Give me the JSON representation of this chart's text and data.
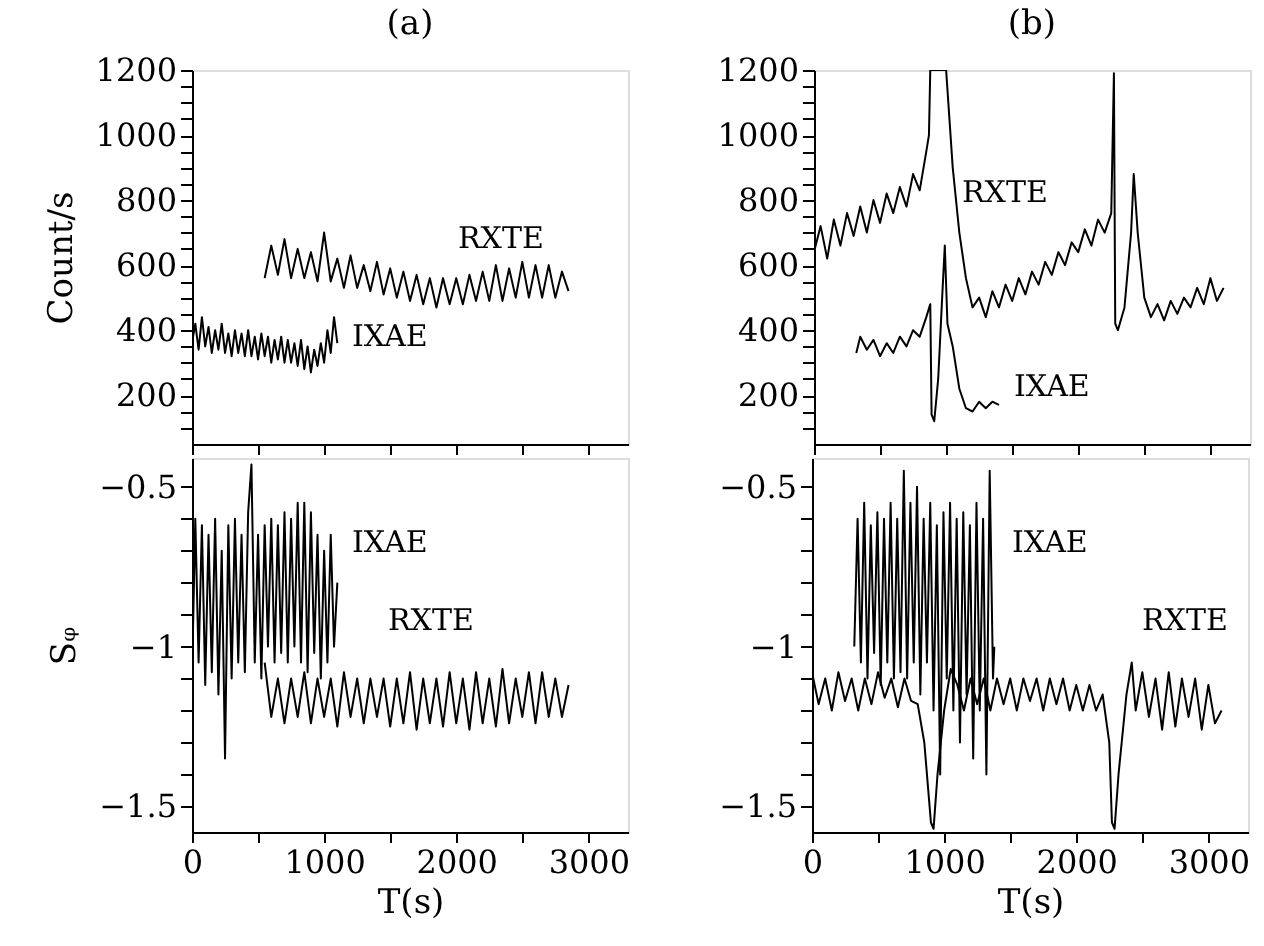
{
  "chart_data": [
    {
      "type": "line",
      "title": "(a)",
      "ylabel": "Count/s",
      "xlim": [
        0,
        3300
      ],
      "ylim": [
        50,
        1200
      ],
      "tick_labels": "y",
      "legend": false,
      "grid": false,
      "xticks": [
        {
          "value": 0,
          "label": null
        },
        {
          "value": 500,
          "label": null
        },
        {
          "value": 1000,
          "label": null
        },
        {
          "value": 1500,
          "label": null
        },
        {
          "value": 2000,
          "label": null
        },
        {
          "value": 2500,
          "label": null
        },
        {
          "value": 3000,
          "label": null
        }
      ],
      "yticks": [
        {
          "value": 100,
          "label": null
        },
        {
          "value": 150,
          "label": null
        },
        200,
        {
          "value": 250,
          "label": null
        },
        {
          "value": 300,
          "label": null
        },
        {
          "value": 350,
          "label": null
        },
        400,
        {
          "value": 450,
          "label": null
        },
        {
          "value": 500,
          "label": null
        },
        {
          "value": 550,
          "label": null
        },
        600,
        {
          "value": 650,
          "label": null
        },
        {
          "value": 700,
          "label": null
        },
        {
          "value": 750,
          "label": null
        },
        800,
        {
          "value": 850,
          "label": null
        },
        {
          "value": 900,
          "label": null
        },
        {
          "value": 950,
          "label": null
        },
        1000,
        {
          "value": 1050,
          "label": null
        },
        {
          "value": 1100,
          "label": null
        },
        {
          "value": 1150,
          "label": null
        },
        1200
      ],
      "series": [
        {
          "name": "IXAE",
          "color": "#000000",
          "x": [
            0,
            25,
            50,
            75,
            100,
            125,
            150,
            175,
            200,
            225,
            250,
            275,
            300,
            325,
            350,
            375,
            400,
            425,
            450,
            475,
            500,
            525,
            550,
            575,
            600,
            625,
            650,
            675,
            700,
            725,
            750,
            775,
            800,
            825,
            850,
            875,
            900,
            925,
            950,
            975,
            1000,
            1025,
            1050,
            1075,
            1100
          ],
          "values": [
            360,
            420,
            340,
            440,
            350,
            410,
            330,
            400,
            340,
            420,
            330,
            390,
            320,
            400,
            330,
            390,
            320,
            400,
            320,
            380,
            310,
            390,
            320,
            380,
            300,
            370,
            310,
            380,
            300,
            370,
            300,
            360,
            290,
            370,
            280,
            350,
            270,
            340,
            290,
            360,
            300,
            400,
            330,
            440,
            360
          ]
        },
        {
          "name": "RXTE",
          "color": "#000000",
          "x": [
            550,
            600,
            650,
            700,
            750,
            800,
            850,
            900,
            950,
            1000,
            1050,
            1100,
            1150,
            1200,
            1250,
            1300,
            1350,
            1400,
            1450,
            1500,
            1550,
            1600,
            1650,
            1700,
            1750,
            1800,
            1850,
            1900,
            1950,
            2000,
            2050,
            2100,
            2150,
            2200,
            2250,
            2300,
            2350,
            2400,
            2450,
            2500,
            2550,
            2600,
            2650,
            2700,
            2750,
            2800,
            2850
          ],
          "values": [
            560,
            660,
            570,
            680,
            560,
            650,
            560,
            640,
            550,
            700,
            550,
            620,
            530,
            630,
            530,
            600,
            520,
            610,
            510,
            590,
            500,
            580,
            490,
            570,
            480,
            560,
            470,
            560,
            480,
            560,
            480,
            570,
            490,
            580,
            490,
            600,
            490,
            590,
            500,
            610,
            500,
            600,
            500,
            600,
            500,
            580,
            520
          ]
        }
      ]
    },
    {
      "type": "line",
      "title": "(b)",
      "xlim": [
        0,
        3300
      ],
      "ylim": [
        50,
        1200
      ],
      "tick_labels": "y",
      "legend": false,
      "grid": false,
      "xticks": [
        {
          "value": 0,
          "label": null
        },
        {
          "value": 500,
          "label": null
        },
        {
          "value": 1000,
          "label": null
        },
        {
          "value": 1500,
          "label": null
        },
        {
          "value": 2000,
          "label": null
        },
        {
          "value": 2500,
          "label": null
        },
        {
          "value": 3000,
          "label": null
        }
      ],
      "yticks": [
        {
          "value": 100,
          "label": null
        },
        {
          "value": 150,
          "label": null
        },
        200,
        {
          "value": 250,
          "label": null
        },
        {
          "value": 300,
          "label": null
        },
        {
          "value": 350,
          "label": null
        },
        400,
        {
          "value": 450,
          "label": null
        },
        {
          "value": 500,
          "label": null
        },
        {
          "value": 550,
          "label": null
        },
        600,
        {
          "value": 650,
          "label": null
        },
        {
          "value": 700,
          "label": null
        },
        {
          "value": 750,
          "label": null
        },
        800,
        {
          "value": 850,
          "label": null
        },
        {
          "value": 900,
          "label": null
        },
        {
          "value": 950,
          "label": null
        },
        1000,
        {
          "value": 1050,
          "label": null
        },
        {
          "value": 1100,
          "label": null
        },
        {
          "value": 1150,
          "label": null
        },
        1200
      ],
      "series": [
        {
          "name": "RXTE",
          "color": "#000000",
          "x": [
            0,
            50,
            100,
            150,
            200,
            250,
            300,
            350,
            400,
            450,
            500,
            550,
            600,
            650,
            700,
            750,
            800,
            850,
            870,
            880,
            940,
            1000,
            1050,
            1100,
            1150,
            1200,
            1250,
            1300,
            1350,
            1400,
            1450,
            1500,
            1550,
            1600,
            1650,
            1700,
            1750,
            1800,
            1850,
            1900,
            1950,
            2000,
            2050,
            2100,
            2150,
            2200,
            2250,
            2270,
            2280,
            2300,
            2350,
            2400,
            2420,
            2450,
            2500,
            2550,
            2600,
            2650,
            2700,
            2750,
            2800,
            2850,
            2900,
            2950,
            3000,
            3050,
            3100
          ],
          "values": [
            640,
            720,
            620,
            740,
            660,
            760,
            690,
            780,
            700,
            800,
            730,
            820,
            760,
            840,
            780,
            880,
            830,
            950,
            1000,
            1200,
            1200,
            1200,
            900,
            700,
            560,
            470,
            500,
            440,
            520,
            470,
            540,
            490,
            560,
            510,
            580,
            540,
            610,
            570,
            640,
            600,
            670,
            640,
            710,
            660,
            740,
            700,
            760,
            1190,
            420,
            400,
            470,
            700,
            880,
            700,
            500,
            440,
            480,
            430,
            490,
            450,
            500,
            470,
            530,
            480,
            560,
            490,
            530
          ]
        },
        {
          "name": "IXAE",
          "color": "#000000",
          "x": [
            320,
            350,
            400,
            450,
            500,
            550,
            600,
            650,
            700,
            750,
            800,
            850,
            880,
            890,
            910,
            940,
            970,
            990,
            1010,
            1050,
            1100,
            1150,
            1200,
            1250,
            1300,
            1350,
            1400
          ],
          "values": [
            330,
            380,
            340,
            370,
            320,
            360,
            330,
            380,
            350,
            400,
            380,
            440,
            480,
            140,
            120,
            250,
            500,
            660,
            420,
            350,
            220,
            160,
            150,
            180,
            160,
            180,
            170
          ]
        }
      ]
    },
    {
      "type": "line",
      "ylabel": "Sᵩ",
      "xlabel": "T(s)",
      "xlim": [
        0,
        3300
      ],
      "ylim": [
        -1.58,
        -0.41
      ],
      "legend": false,
      "grid": false,
      "xticks": [
        0,
        {
          "value": 500,
          "label": null
        },
        1000,
        {
          "value": 1500,
          "label": null
        },
        2000,
        {
          "value": 2500,
          "label": null
        },
        3000
      ],
      "yticks": [
        {
          "value": -1.5,
          "label": "−1.5"
        },
        {
          "value": -1.4,
          "label": null
        },
        {
          "value": -1.3,
          "label": null
        },
        {
          "value": -1.2,
          "label": null
        },
        {
          "value": -1.1,
          "label": null
        },
        {
          "value": -1,
          "label": "−1"
        },
        {
          "value": -0.9,
          "label": null
        },
        {
          "value": -0.8,
          "label": null
        },
        {
          "value": -0.7,
          "label": null
        },
        {
          "value": -0.6,
          "label": null
        },
        {
          "value": -0.5,
          "label": "−0.5"
        }
      ],
      "series": [
        {
          "name": "IXAE",
          "color": "#000000",
          "x": [
            0,
            25,
            50,
            75,
            100,
            125,
            150,
            175,
            200,
            225,
            250,
            275,
            300,
            325,
            350,
            375,
            400,
            425,
            450,
            475,
            500,
            525,
            550,
            575,
            600,
            625,
            650,
            675,
            700,
            725,
            750,
            775,
            800,
            825,
            850,
            875,
            900,
            925,
            950,
            975,
            1000,
            1025,
            1050,
            1075,
            1100
          ],
          "values": [
            -1.1,
            -0.6,
            -1.05,
            -0.62,
            -1.12,
            -0.65,
            -1.08,
            -0.6,
            -1.15,
            -0.7,
            -1.35,
            -0.62,
            -1.1,
            -0.6,
            -1.05,
            -0.65,
            -1.08,
            -0.58,
            -0.43,
            -1.05,
            -0.65,
            -1.1,
            -0.62,
            -1.0,
            -0.6,
            -1.05,
            -0.62,
            -1.02,
            -0.58,
            -1.05,
            -0.6,
            -1.0,
            -0.55,
            -1.05,
            -0.55,
            -1.08,
            -0.58,
            -1.02,
            -0.65,
            -1.1,
            -0.7,
            -1.05,
            -0.65,
            -1.0,
            -0.8
          ]
        },
        {
          "name": "RXTE",
          "color": "#000000",
          "x": [
            550,
            600,
            650,
            700,
            750,
            800,
            850,
            900,
            950,
            1000,
            1050,
            1100,
            1150,
            1200,
            1250,
            1300,
            1350,
            1400,
            1450,
            1500,
            1550,
            1600,
            1650,
            1700,
            1750,
            1800,
            1850,
            1900,
            1950,
            2000,
            2050,
            2100,
            2150,
            2200,
            2250,
            2300,
            2350,
            2400,
            2450,
            2500,
            2550,
            2600,
            2650,
            2700,
            2750,
            2800,
            2850
          ],
          "values": [
            -1.05,
            -1.22,
            -1.1,
            -1.24,
            -1.1,
            -1.22,
            -1.08,
            -1.24,
            -1.1,
            -1.22,
            -1.1,
            -1.25,
            -1.08,
            -1.22,
            -1.1,
            -1.24,
            -1.1,
            -1.22,
            -1.1,
            -1.25,
            -1.1,
            -1.24,
            -1.08,
            -1.26,
            -1.1,
            -1.24,
            -1.1,
            -1.25,
            -1.08,
            -1.24,
            -1.1,
            -1.26,
            -1.08,
            -1.24,
            -1.1,
            -1.25,
            -1.07,
            -1.24,
            -1.1,
            -1.22,
            -1.08,
            -1.24,
            -1.08,
            -1.22,
            -1.1,
            -1.22,
            -1.12
          ]
        }
      ]
    },
    {
      "type": "line",
      "xlabel": "T(s)",
      "xlim": [
        0,
        3300
      ],
      "ylim": [
        -1.58,
        -0.41
      ],
      "legend": false,
      "grid": false,
      "xticks": [
        0,
        {
          "value": 500,
          "label": null
        },
        1000,
        {
          "value": 1500,
          "label": null
        },
        2000,
        {
          "value": 2500,
          "label": null
        },
        3000
      ],
      "yticks": [
        {
          "value": -1.5,
          "label": "−1.5"
        },
        {
          "value": -1.4,
          "label": null
        },
        {
          "value": -1.3,
          "label": null
        },
        {
          "value": -1.2,
          "label": null
        },
        {
          "value": -1.1,
          "label": null
        },
        {
          "value": -1,
          "label": "−1"
        },
        {
          "value": -0.9,
          "label": null
        },
        {
          "value": -0.8,
          "label": null
        },
        {
          "value": -0.7,
          "label": null
        },
        {
          "value": -0.6,
          "label": null
        },
        {
          "value": -0.5,
          "label": "−0.5"
        }
      ],
      "series": [
        {
          "name": "RXTE",
          "color": "#000000",
          "x": [
            0,
            50,
            100,
            150,
            200,
            250,
            300,
            350,
            400,
            450,
            500,
            550,
            600,
            650,
            700,
            750,
            800,
            850,
            900,
            920,
            950,
            1000,
            1050,
            1100,
            1150,
            1200,
            1250,
            1300,
            1350,
            1400,
            1450,
            1500,
            1550,
            1600,
            1650,
            1700,
            1750,
            1800,
            1850,
            1900,
            1950,
            2000,
            2050,
            2100,
            2150,
            2200,
            2250,
            2270,
            2290,
            2320,
            2380,
            2420,
            2450,
            2500,
            2550,
            2600,
            2650,
            2700,
            2750,
            2800,
            2850,
            2900,
            2950,
            3000,
            3050,
            3100
          ],
          "values": [
            -1.08,
            -1.18,
            -1.1,
            -1.2,
            -1.08,
            -1.17,
            -1.1,
            -1.2,
            -1.1,
            -1.18,
            -1.08,
            -1.16,
            -1.1,
            -1.19,
            -1.1,
            -1.17,
            -1.18,
            -1.3,
            -1.55,
            -1.57,
            -1.4,
            -1.2,
            -1.07,
            -1.12,
            -1.2,
            -1.1,
            -1.18,
            -1.1,
            -1.2,
            -1.1,
            -1.18,
            -1.1,
            -1.2,
            -1.1,
            -1.17,
            -1.1,
            -1.2,
            -1.1,
            -1.18,
            -1.1,
            -1.2,
            -1.12,
            -1.2,
            -1.12,
            -1.2,
            -1.15,
            -1.3,
            -1.55,
            -1.57,
            -1.4,
            -1.15,
            -1.05,
            -1.2,
            -1.08,
            -1.22,
            -1.1,
            -1.26,
            -1.08,
            -1.25,
            -1.1,
            -1.22,
            -1.1,
            -1.26,
            -1.12,
            -1.24,
            -1.2
          ]
        },
        {
          "name": "IXAE",
          "color": "#000000",
          "x": [
            320,
            345,
            370,
            395,
            420,
            445,
            470,
            495,
            520,
            545,
            570,
            595,
            620,
            645,
            670,
            695,
            720,
            745,
            770,
            795,
            820,
            845,
            870,
            895,
            920,
            945,
            970,
            995,
            1020,
            1045,
            1070,
            1095,
            1120,
            1145,
            1170,
            1195,
            1220,
            1245,
            1270,
            1295,
            1320,
            1345,
            1370,
            1380
          ],
          "values": [
            -1.0,
            -0.6,
            -1.05,
            -0.55,
            -1.1,
            -0.62,
            -1.02,
            -0.58,
            -1.12,
            -0.6,
            -1.05,
            -0.55,
            -1.1,
            -0.6,
            -1.08,
            -0.45,
            -1.1,
            -0.55,
            -1.05,
            -0.5,
            -1.15,
            -0.6,
            -1.05,
            -0.55,
            -1.2,
            -0.62,
            -1.4,
            -0.58,
            -1.1,
            -0.55,
            -1.2,
            -0.6,
            -1.3,
            -0.58,
            -1.15,
            -0.62,
            -1.35,
            -0.55,
            -1.2,
            -0.6,
            -1.4,
            -0.45,
            -1.1,
            -1.0
          ]
        }
      ]
    }
  ]
}
